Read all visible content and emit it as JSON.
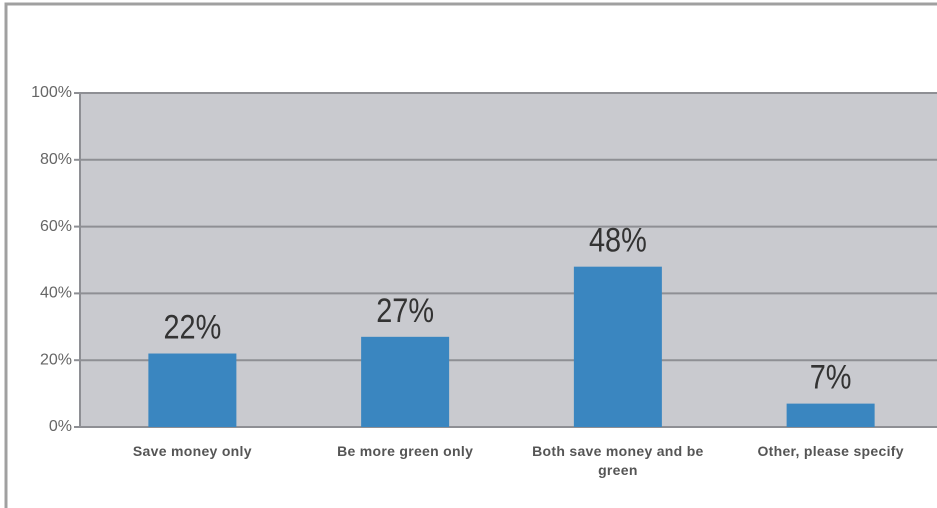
{
  "chart_data": {
    "type": "bar",
    "categories": [
      "Save money only",
      "Be more green only",
      "Both save money and be green",
      "Other, please specify"
    ],
    "values": [
      22,
      27,
      48,
      7
    ],
    "value_labels": [
      "22%",
      "27%",
      "48%",
      "7%"
    ],
    "color": "#3a86c0",
    "ylim": [
      0,
      100
    ],
    "yticks": [
      {
        "value": 0,
        "label": "0%"
      },
      {
        "value": 20,
        "label": "20%"
      },
      {
        "value": 40,
        "label": "40%"
      },
      {
        "value": 60,
        "label": "60%"
      },
      {
        "value": 80,
        "label": "80%"
      },
      {
        "value": 100,
        "label": "100%"
      }
    ],
    "grid": true
  }
}
